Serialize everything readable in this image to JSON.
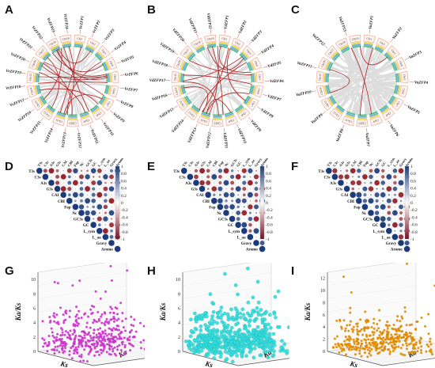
{
  "figure": {
    "panels": [
      {
        "label": "A"
      },
      {
        "label": "B"
      },
      {
        "label": "C"
      },
      {
        "label": "D"
      },
      {
        "label": "E"
      },
      {
        "label": "F"
      },
      {
        "label": "G"
      },
      {
        "label": "H"
      },
      {
        "label": "I"
      }
    ]
  },
  "circos": [
    {
      "chromosomes": [
        "Chr1",
        "Chr2",
        "Chr3",
        "Chr4",
        "Chr5",
        "Chr6",
        "Chr7",
        "Chr8",
        "Chr9",
        "Chr10",
        "Chr11",
        "Chr12",
        "Chr13",
        "Chr14",
        "Chr15",
        "Chr16",
        "Chr17",
        "Chr18",
        "Chr19"
      ],
      "genes": [
        "VrZFP1",
        "VrZFP2",
        "VrZFP3",
        "VrZFP4",
        "VrZFP5",
        "VrZFP6",
        "VrZFP7",
        "VrZFP8",
        "VrZFP9",
        "VrZFP10",
        "VrZFP11",
        "VrZFP12",
        "VrZFP13",
        "VrZFP14",
        "VrZFP15",
        "VrZFP16",
        "VrZFP17",
        "VrZFP18",
        "VrZFP19",
        "VrZFP20",
        "VrZFP21",
        "VrZFP22",
        "VrZFP23",
        "VrZFP24"
      ]
    },
    {
      "chromosomes": [
        "Chr1",
        "Chr2",
        "Chr3",
        "Chr4",
        "Chr5",
        "Chr6",
        "Chr7",
        "Chr8",
        "Chr9",
        "Chr10",
        "Chr11",
        "Chr12",
        "Chr13",
        "Chr14",
        "Chr15",
        "Chr16",
        "Chr17",
        "Chr18",
        "Chr19"
      ],
      "genes": [
        "VdZFP1",
        "VdZFP2",
        "VdZFP3",
        "VdZFP4",
        "VdZFP5",
        "VdZFP6",
        "VdZFP7",
        "VdZFP8",
        "VdZFP9",
        "VdZFP10",
        "VdZFP11",
        "VdZFP12",
        "VdZFP13",
        "VdZFP14",
        "VdZFP15",
        "VdZFP16",
        "VdZFP17",
        "VdZFP18",
        "VdZFP19",
        "VdZFP20",
        "VdZFP21",
        "VdZFP22"
      ]
    },
    {
      "chromosomes": [
        "Chr1",
        "Chr2",
        "Chr3",
        "Chr4",
        "Chr5",
        "Chr6",
        "Chr7",
        "Chr8",
        "Chr9",
        "Chr10",
        "Chr11",
        "Chr12",
        "Chr13",
        "Chr14",
        "Chr15",
        "Chr16",
        "Chr17",
        "Chr18",
        "Chr19"
      ],
      "genes": [
        "VaZFP1",
        "VaZFP2",
        "VaZFP3",
        "VaZFP4",
        "VaZFP5",
        "VaZFP6",
        "VaZFP7",
        "VaZFP8",
        "VaZFP9",
        "VaZFP10",
        "VaZFP11",
        "VaZFP12",
        "VaZFP13"
      ]
    }
  ],
  "chart_data": [
    {
      "type": "heatmap",
      "variables": [
        "T3s",
        "C3s",
        "A3s",
        "G3s",
        "CAI",
        "CBI",
        "Fop",
        "Nc",
        "GC3s",
        "GC",
        "L_sym",
        "L_aa",
        "Gravy",
        "Aromo"
      ],
      "colorbar": {
        "ticks": [
          "1",
          "0.8",
          "0.6",
          "0.4",
          "0.2",
          "0",
          "-0.2",
          "-0.4",
          "-0.6",
          "-0.8",
          "-1"
        ],
        "min": -1,
        "max": 1
      }
    },
    {
      "type": "heatmap",
      "variables": [
        "T3s",
        "C3s",
        "A3s",
        "G3s",
        "CAI",
        "CBI",
        "Fop",
        "Nc",
        "GC3s",
        "GC",
        "L_sym",
        "L_aa",
        "Gravy",
        "Aromo"
      ],
      "colorbar": {
        "ticks": [
          "1",
          "0.8",
          "0.6",
          "0.4",
          "0.2",
          "0",
          "-0.2",
          "-0.4",
          "-0.6",
          "-0.8",
          "-1"
        ],
        "min": -1,
        "max": 1
      }
    },
    {
      "type": "heatmap",
      "variables": [
        "T3s",
        "C3s",
        "A3s",
        "G3s",
        "CAI",
        "CBI",
        "Fop",
        "Nc",
        "GC3s",
        "GC",
        "L_sym",
        "L_aa",
        "Gravy",
        "Aromo"
      ],
      "colorbar": {
        "ticks": [
          "1",
          "0.8",
          "0.6",
          "0.4",
          "0.2",
          "0",
          "-0.2",
          "-0.4",
          "-0.6",
          "-0.8",
          "-1"
        ],
        "min": -1,
        "max": 1
      }
    },
    {
      "type": "scatter",
      "zlabel": "Ka/Ks",
      "xlabel": "Ks",
      "ylabel": "Ka",
      "zticks": [
        "0",
        "2",
        "4",
        "6",
        "8",
        "10"
      ],
      "zlim": [
        0,
        11
      ],
      "color": "#cc33cc",
      "points_n": 420
    },
    {
      "type": "scatter",
      "zlabel": "Ka/Ks",
      "xlabel": "Ks",
      "ylabel": "Ka",
      "zticks": [
        "0",
        "2",
        "4",
        "6",
        "8",
        "10"
      ],
      "zlim": [
        0,
        11
      ],
      "color": "#33dddd",
      "points_n": 520
    },
    {
      "type": "scatter",
      "zlabel": "Ka/Ks",
      "xlabel": "Ks",
      "ylabel": "Ka",
      "zticks": [
        "0",
        "2",
        "4",
        "6",
        "8",
        "10",
        "12"
      ],
      "zlim": [
        0,
        13
      ],
      "color": "#e08a00",
      "points_n": 380
    }
  ],
  "colors": {
    "link": "#b22222",
    "link_bg": "#dddddd",
    "positive": "#1a3a7a",
    "negative": "#7a1020",
    "track_blue": "#6aaede",
    "track_yellow": "#e8d44a",
    "track_green": "#55c28e",
    "chrom_outline": "#e8a090"
  }
}
